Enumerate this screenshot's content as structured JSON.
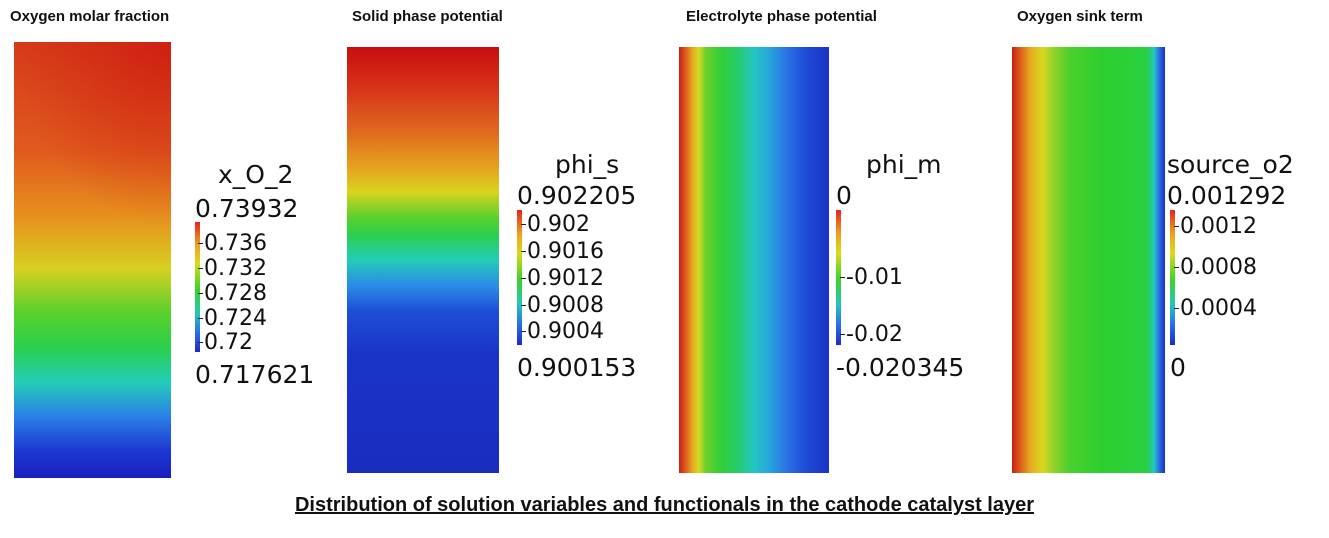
{
  "panels": [
    {
      "title": "Oxygen molar fraction",
      "variable": "x_O_2",
      "max": "0.73932",
      "min": "0.717621",
      "ticks": [
        "0.736",
        "0.732",
        "0.728",
        "0.724",
        "0.72"
      ]
    },
    {
      "title": "Solid phase potential",
      "variable": "phi_s",
      "max": "0.902205",
      "min": "0.900153",
      "ticks": [
        "0.902",
        "0.9016",
        "0.9012",
        "0.9008",
        "0.9004"
      ]
    },
    {
      "title": "Electrolyte phase potential",
      "variable": "phi_m",
      "max": "0",
      "min": "-0.020345",
      "ticks": [
        "-0.01",
        "-0.02"
      ]
    },
    {
      "title": "Oxygen sink term",
      "variable": "source_o2",
      "max": "0.001292",
      "min": "0",
      "ticks": [
        "0.0012",
        "0.0008",
        "0.0004"
      ]
    }
  ],
  "caption": "Distribution of solution variables and functionals in the cathode catalyst layer",
  "colormap": [
    "#1e28c8",
    "#2b6ee8",
    "#22c7b8",
    "#3cd22a",
    "#d6dc18",
    "#f0a21e",
    "#e8231f"
  ]
}
